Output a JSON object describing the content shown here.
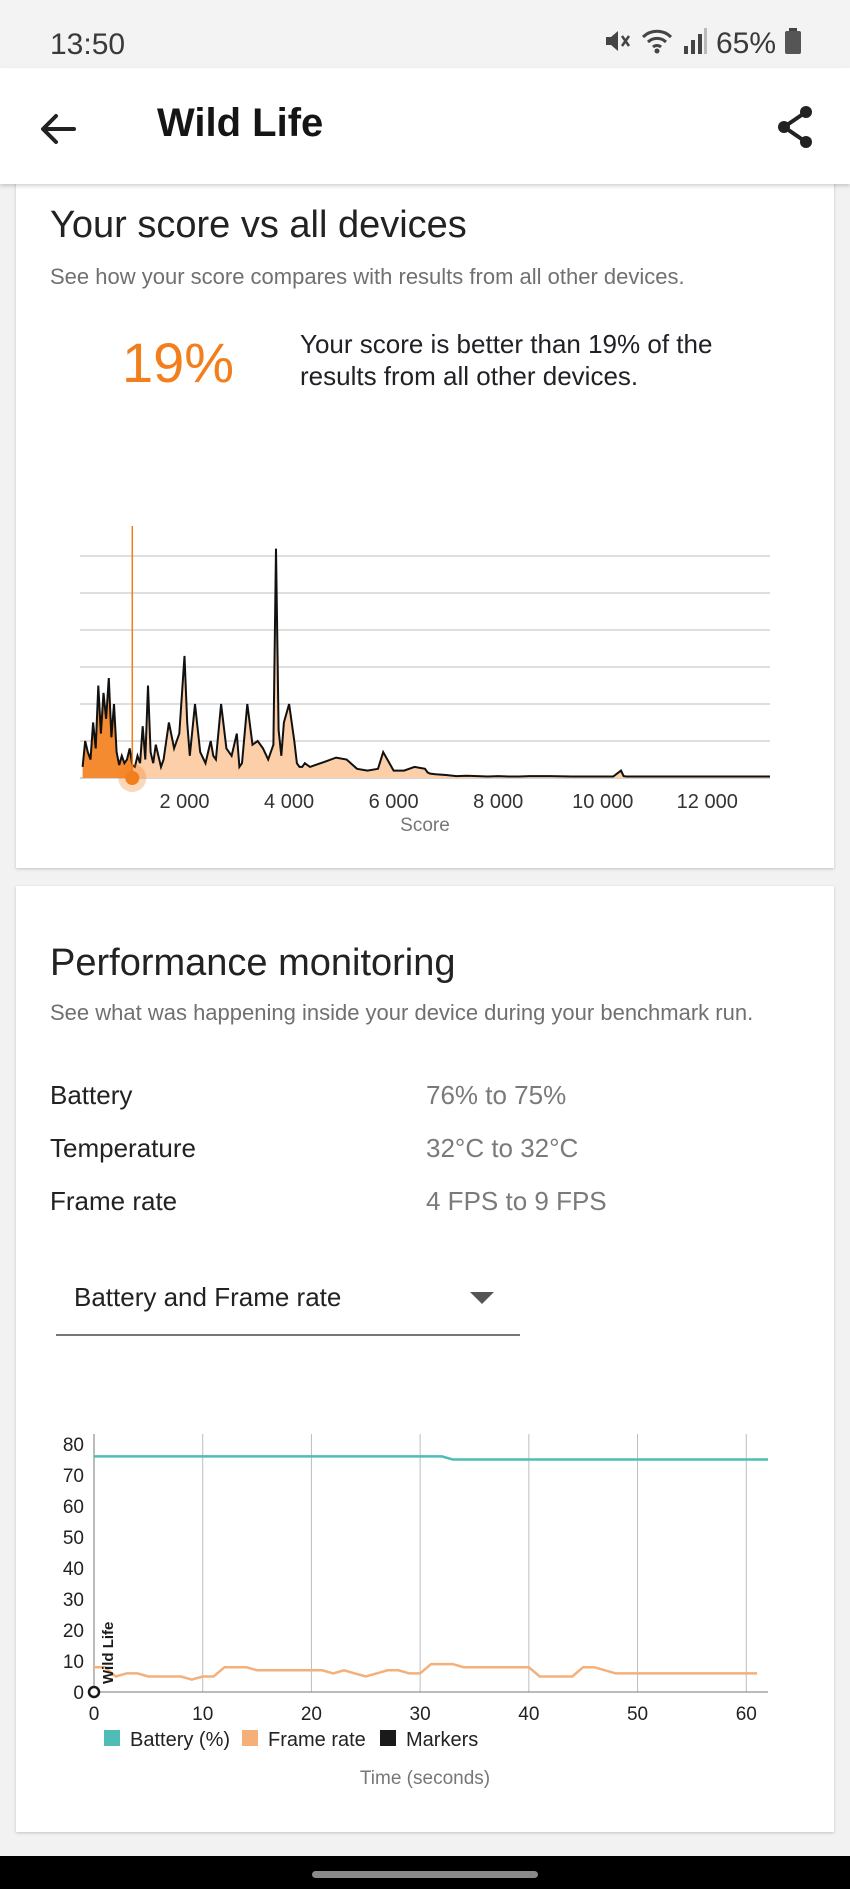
{
  "status_bar": {
    "time": "13:50",
    "battery": "65%"
  },
  "app_bar": {
    "title": "Wild Life",
    "back_icon": "arrow-left-icon",
    "share_icon": "share-icon"
  },
  "score_card": {
    "title": "Your score vs all devices",
    "subtitle": "See how your score compares with results from all other devices.",
    "percentile": "19%",
    "description": "Your score is better than 19% of the results from all other devices.",
    "accent_color": "#f27f1b"
  },
  "perf_card": {
    "title": "Performance monitoring",
    "subtitle": "See what was happening inside your device during your benchmark run.",
    "stats": [
      {
        "label": "Battery",
        "value": "76% to 75%"
      },
      {
        "label": "Temperature",
        "value": "32°C to 32°C"
      },
      {
        "label": "Frame rate",
        "value": "4 FPS to 9 FPS"
      }
    ],
    "dropdown": {
      "selected": "Battery and Frame rate"
    }
  },
  "chart_data": [
    {
      "type": "area",
      "xlabel": "Score",
      "ylabel": "",
      "xlim": [
        0,
        13200
      ],
      "ylim": [
        0,
        6
      ],
      "xticks": [
        "2 000",
        "4 000",
        "6 000",
        "8 000",
        "10 000",
        "12 000"
      ],
      "xtick_values": [
        2000,
        4000,
        6000,
        8000,
        10000,
        12000
      ],
      "grid": true,
      "your_score": 1000,
      "highlight_color": "#f27f1b",
      "fill_color": "#fccfa9",
      "x": [
        50,
        100,
        150,
        200,
        250,
        300,
        350,
        400,
        450,
        500,
        550,
        600,
        650,
        700,
        750,
        800,
        850,
        900,
        950,
        1000,
        1050,
        1100,
        1150,
        1200,
        1250,
        1300,
        1350,
        1400,
        1450,
        1500,
        1550,
        1600,
        1700,
        1800,
        1900,
        2000,
        2050,
        2100,
        2200,
        2300,
        2400,
        2500,
        2550,
        2600,
        2700,
        2800,
        2900,
        3000,
        3050,
        3100,
        3200,
        3300,
        3400,
        3500,
        3600,
        3700,
        3750,
        3800,
        3850,
        3900,
        4000,
        4100,
        4150,
        4200,
        4250,
        4300,
        4400,
        4500,
        4700,
        4900,
        5100,
        5300,
        5500,
        5700,
        5800,
        6000,
        6200,
        6400,
        6600,
        6650,
        6700,
        6800,
        7000,
        7200,
        7400,
        7600,
        7800,
        8000,
        8200,
        8400,
        8600,
        9000,
        9400,
        9800,
        10200,
        10350,
        10400,
        10450,
        10600,
        11000,
        11400,
        11800,
        12200,
        12600,
        13000,
        13100,
        13200
      ],
      "values": [
        0.3,
        1.0,
        0.7,
        0.5,
        1.5,
        0.8,
        2.5,
        1.2,
        2.3,
        1.6,
        2.7,
        1.1,
        2.0,
        0.7,
        0.35,
        0.6,
        0.4,
        0.5,
        0.8,
        0.35,
        0.3,
        0.6,
        0.4,
        1.4,
        0.5,
        2.5,
        0.7,
        0.4,
        0.9,
        0.6,
        0.3,
        0.5,
        1.5,
        0.8,
        1.2,
        3.3,
        1.5,
        0.6,
        2.0,
        0.7,
        0.4,
        1.0,
        0.6,
        0.5,
        2.0,
        0.8,
        0.6,
        1.2,
        0.3,
        0.4,
        2.0,
        0.9,
        1.0,
        0.8,
        0.5,
        0.9,
        6.2,
        1.3,
        0.6,
        1.5,
        2.0,
        1.0,
        0.4,
        0.3,
        0.3,
        0.4,
        0.3,
        0.35,
        0.45,
        0.55,
        0.5,
        0.25,
        0.2,
        0.25,
        0.7,
        0.2,
        0.2,
        0.3,
        0.25,
        0.15,
        0.12,
        0.1,
        0.08,
        0.05,
        0.06,
        0.05,
        0.04,
        0.05,
        0.04,
        0.04,
        0.05,
        0.05,
        0.04,
        0.04,
        0.04,
        0.2,
        0.05,
        0.04,
        0.04,
        0.04,
        0.04,
        0.04,
        0.04,
        0.04,
        0.04,
        0.04,
        0.04
      ]
    },
    {
      "type": "line",
      "xlabel": "Time (seconds)",
      "ylabel": "",
      "xlim": [
        0,
        62
      ],
      "ylim": [
        0,
        80
      ],
      "xticks": [
        0,
        10,
        20,
        30,
        40,
        50,
        60
      ],
      "yticks": [
        0,
        10,
        20,
        30,
        40,
        50,
        60,
        70,
        80
      ],
      "grid": true,
      "legend": "bottom",
      "marker_label": "Wild Life",
      "series": [
        {
          "name": "Battery (%)",
          "color": "#4fbdb6",
          "x": [
            0,
            32,
            33,
            62
          ],
          "values": [
            76,
            76,
            75,
            75
          ]
        },
        {
          "name": "Frame rate",
          "color": "#f5b07a",
          "x": [
            0,
            1,
            2,
            3,
            4,
            5,
            6,
            7,
            8,
            9,
            10,
            11,
            12,
            13,
            14,
            15,
            16,
            17,
            18,
            19,
            20,
            21,
            22,
            23,
            24,
            25,
            26,
            27,
            28,
            29,
            30,
            31,
            32,
            33,
            34,
            35,
            36,
            37,
            38,
            39,
            40,
            41,
            42,
            43,
            44,
            45,
            46,
            47,
            48,
            49,
            50,
            51,
            52,
            53,
            54,
            55,
            56,
            57,
            58,
            59,
            60,
            61
          ],
          "values": [
            8,
            8,
            5,
            6,
            6,
            5,
            5,
            5,
            5,
            4,
            5,
            5,
            8,
            8,
            8,
            7,
            7,
            7,
            7,
            7,
            7,
            7,
            6,
            7,
            6,
            5,
            6,
            7,
            7,
            6,
            6,
            9,
            9,
            9,
            8,
            8,
            8,
            8,
            8,
            8,
            8,
            5,
            5,
            5,
            5,
            8,
            8,
            7,
            6,
            6,
            6,
            6,
            6,
            6,
            6,
            6,
            6,
            6,
            6,
            6,
            6,
            6
          ]
        },
        {
          "name": "Markers",
          "color": "#1a1a1a",
          "x": [
            0
          ],
          "values": [
            0
          ]
        }
      ]
    }
  ]
}
